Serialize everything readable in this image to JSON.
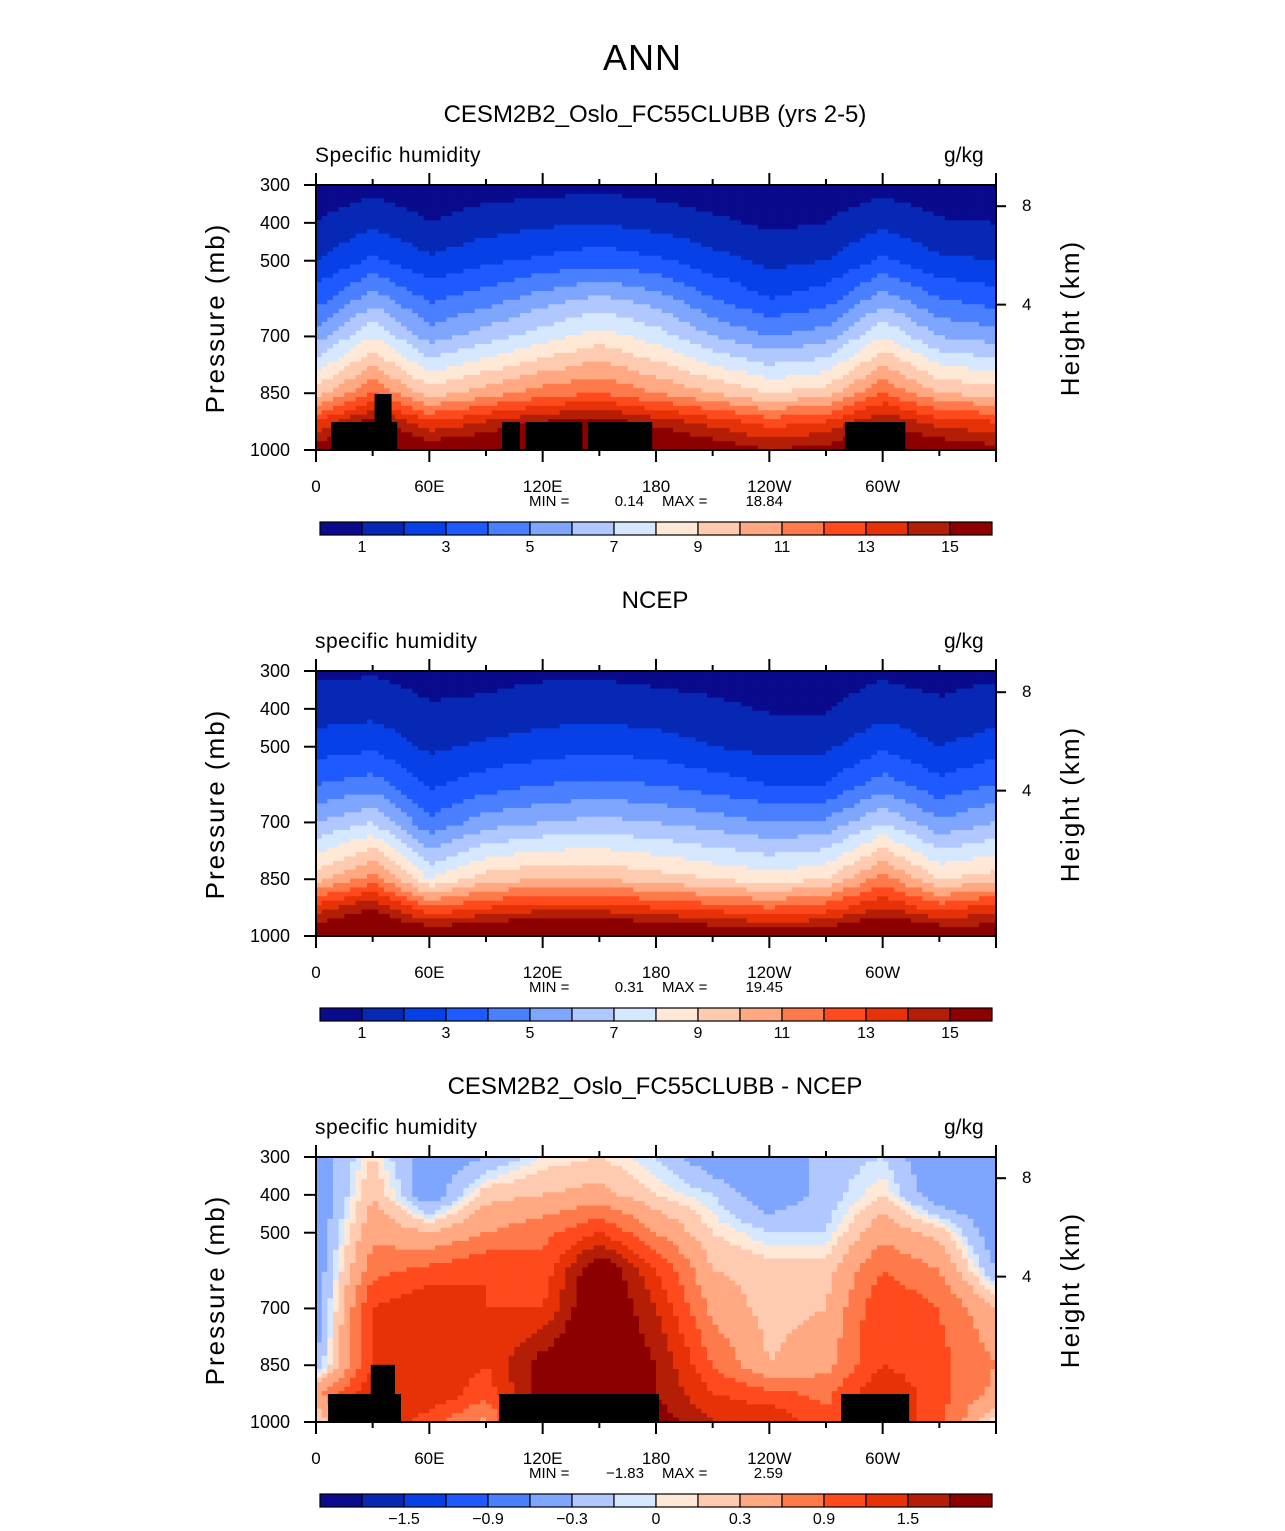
{
  "main_title": "ANN",
  "chart_data": [
    {
      "type": "heatmap",
      "title": "CESM2B2_Oslo_FC55CLUBB (yrs 2-5)",
      "left_string": "Specific humidity",
      "right_string": "g/kg",
      "ylabel": "Pressure (mb)",
      "ylabel_right": "Height (km)",
      "yticks": [
        300,
        400,
        500,
        700,
        850,
        1000
      ],
      "yticks_right": [
        {
          "label": "8",
          "pressure": 356
        },
        {
          "label": "4",
          "pressure": 616
        }
      ],
      "xticks": [
        {
          "lon": 0,
          "label": "0"
        },
        {
          "lon": 60,
          "label": "60E"
        },
        {
          "lon": 120,
          "label": "120E"
        },
        {
          "lon": 180,
          "label": "180"
        },
        {
          "lon": 240,
          "label": "120W"
        },
        {
          "lon": 300,
          "label": "60W"
        }
      ],
      "xlim": [
        0,
        360
      ],
      "ylim": [
        1000,
        300
      ],
      "min_label": "MIN =",
      "min": "0.14",
      "max_label": "MAX =",
      "max": "18.84",
      "levels": [
        1,
        2,
        3,
        4,
        5,
        6,
        7,
        8,
        9,
        10,
        11,
        12,
        13,
        14,
        15
      ],
      "colorbar_labels": [
        "1",
        "3",
        "5",
        "7",
        "9",
        "11",
        "13",
        "15"
      ],
      "lon": [
        0,
        30,
        60,
        90,
        120,
        150,
        180,
        210,
        240,
        270,
        300,
        330,
        360
      ],
      "pressure": [
        1000,
        925,
        850,
        700,
        600,
        500,
        400,
        300
      ],
      "values": [
        [
          15.5,
          17,
          16,
          16.5,
          17.5,
          17.5,
          17,
          16,
          15,
          15.5,
          17,
          16,
          15.5
        ],
        [
          13,
          15.5,
          13,
          14,
          15,
          15.5,
          14.5,
          13.5,
          12.5,
          13,
          15,
          13.5,
          13
        ],
        [
          9.5,
          12,
          9.5,
          10.5,
          11.5,
          12,
          11,
          10,
          9,
          9.5,
          12,
          10,
          9.5
        ],
        [
          5.5,
          8,
          5.5,
          6.5,
          7.5,
          8.5,
          7.5,
          6,
          5,
          5.5,
          8,
          6,
          5.5
        ],
        [
          3.5,
          5.5,
          3.8,
          4.5,
          5.5,
          6.2,
          5.5,
          4,
          3,
          3.5,
          5.5,
          4,
          3.5
        ],
        [
          2,
          3.2,
          2.2,
          2.8,
          3.2,
          3.6,
          3.2,
          2.4,
          1.7,
          2,
          3.2,
          2.2,
          2
        ],
        [
          1,
          1.8,
          1,
          1.5,
          1.8,
          2,
          1.6,
          1.2,
          0.8,
          1,
          1.8,
          1.1,
          1
        ],
        [
          0.3,
          0.6,
          0.4,
          0.5,
          0.6,
          0.7,
          0.6,
          0.4,
          0.3,
          0.3,
          0.6,
          0.4,
          0.3
        ]
      ],
      "land_mask": [
        [
          8,
          43,
          926
        ],
        [
          31,
          40,
          852
        ],
        [
          98.5,
          108,
          926
        ],
        [
          111,
          141,
          926
        ],
        [
          144,
          178,
          926
        ],
        [
          280,
          312,
          926
        ]
      ]
    },
    {
      "type": "heatmap",
      "title": "NCEP",
      "left_string": "specific humidity",
      "right_string": "g/kg",
      "ylabel": "Pressure (mb)",
      "ylabel_right": "Height (km)",
      "yticks": [
        300,
        400,
        500,
        700,
        850,
        1000
      ],
      "yticks_right": [
        {
          "label": "8",
          "pressure": 356
        },
        {
          "label": "4",
          "pressure": 616
        }
      ],
      "xticks": [
        {
          "lon": 0,
          "label": "0"
        },
        {
          "lon": 60,
          "label": "60E"
        },
        {
          "lon": 120,
          "label": "120E"
        },
        {
          "lon": 180,
          "label": "180"
        },
        {
          "lon": 240,
          "label": "120W"
        },
        {
          "lon": 300,
          "label": "60W"
        }
      ],
      "xlim": [
        0,
        360
      ],
      "ylim": [
        1000,
        300
      ],
      "min_label": "MIN =",
      "min": "0.31",
      "max_label": "MAX =",
      "max": "19.45",
      "levels": [
        1,
        2,
        3,
        4,
        5,
        6,
        7,
        8,
        9,
        10,
        11,
        12,
        13,
        14,
        15
      ],
      "colorbar_labels": [
        "1",
        "3",
        "5",
        "7",
        "9",
        "11",
        "13",
        "15"
      ],
      "lon": [
        0,
        30,
        60,
        90,
        120,
        150,
        180,
        210,
        240,
        270,
        300,
        330,
        360
      ],
      "pressure": [
        1000,
        925,
        850,
        700,
        600,
        500,
        400,
        300
      ],
      "values": [
        [
          16,
          17.5,
          16.5,
          17,
          17.5,
          17.5,
          17,
          16.5,
          16,
          16,
          17.5,
          16.5,
          16
        ],
        [
          13.5,
          15,
          12,
          13,
          13.5,
          13.5,
          13,
          12.5,
          12,
          12.5,
          14,
          12.5,
          13.5
        ],
        [
          9.5,
          11.5,
          8,
          9.5,
          10,
          10,
          9.5,
          9,
          8.5,
          9,
          11.5,
          9,
          9.5
        ],
        [
          6,
          7,
          4.2,
          5.5,
          6,
          6.3,
          6,
          5.5,
          5,
          5.2,
          7,
          5.2,
          6
        ],
        [
          4,
          4.5,
          2.8,
          3.5,
          4,
          4.2,
          4,
          3.5,
          3,
          3,
          4.5,
          3.3,
          4
        ],
        [
          2.5,
          2.8,
          1.8,
          2.2,
          2.5,
          2.7,
          2.5,
          2,
          1.7,
          1.8,
          2.8,
          2,
          2.5
        ],
        [
          1.5,
          1.6,
          1.1,
          1.2,
          1.5,
          1.6,
          1.4,
          1.2,
          0.9,
          0.9,
          1.6,
          1.2,
          1.5
        ],
        [
          0.8,
          0.9,
          0.6,
          0.7,
          0.8,
          0.8,
          0.7,
          0.6,
          0.5,
          0.5,
          0.8,
          0.6,
          0.8
        ]
      ],
      "land_mask": []
    },
    {
      "type": "heatmap",
      "title": "CESM2B2_Oslo_FC55CLUBB - NCEP",
      "left_string": "specific humidity",
      "right_string": "g/kg",
      "ylabel": "Pressure (mb)",
      "ylabel_right": "Height (km)",
      "yticks": [
        300,
        400,
        500,
        700,
        850,
        1000
      ],
      "yticks_right": [
        {
          "label": "8",
          "pressure": 356
        },
        {
          "label": "4",
          "pressure": 616
        }
      ],
      "xticks": [
        {
          "lon": 0,
          "label": "0"
        },
        {
          "lon": 60,
          "label": "60E"
        },
        {
          "lon": 120,
          "label": "120E"
        },
        {
          "lon": 180,
          "label": "180"
        },
        {
          "lon": 240,
          "label": "120W"
        },
        {
          "lon": 300,
          "label": "60W"
        }
      ],
      "xlim": [
        0,
        360
      ],
      "ylim": [
        1000,
        300
      ],
      "min_label": "MIN =",
      "min": "−1.83",
      "max_label": "MAX =",
      "max": "2.59",
      "levels": [
        -1.8,
        -1.5,
        -1.2,
        -0.9,
        -0.6,
        -0.3,
        -0.1,
        0,
        0.1,
        0.3,
        0.6,
        0.9,
        1.2,
        1.5,
        1.8
      ],
      "colorbar_labels": [
        "−1.5",
        "−0.9",
        "−0.3",
        "0",
        "0.3",
        "0.9",
        "1.5"
      ],
      "colorbar_label_positions": [
        2,
        4,
        6,
        8,
        10,
        12,
        14
      ],
      "lon": [
        0,
        30,
        60,
        90,
        120,
        150,
        180,
        210,
        240,
        270,
        300,
        330,
        360
      ],
      "pressure": [
        1000,
        925,
        850,
        700,
        600,
        500,
        400,
        300
      ],
      "values": [
        [
          0,
          1.5,
          1,
          0.5,
          2,
          2,
          2,
          1.5,
          1.5,
          1,
          1.5,
          1,
          0
        ],
        [
          0.5,
          1.5,
          1.5,
          1,
          2,
          2.2,
          1.8,
          1.2,
          1,
          0.8,
          1.5,
          1,
          0.5
        ],
        [
          -0.3,
          1.2,
          1.5,
          1.2,
          2,
          2.3,
          1.8,
          0.9,
          0.3,
          0.5,
          1.2,
          1,
          0.6
        ],
        [
          -0.5,
          1.2,
          1.5,
          1.2,
          1.2,
          2.3,
          1.5,
          0.5,
          0.2,
          0.3,
          1.2,
          0.9,
          0.3
        ],
        [
          -0.5,
          0.8,
          1,
          1.2,
          1,
          2.2,
          1.2,
          0.3,
          0.2,
          0.2,
          0.9,
          0.6,
          -0.3
        ],
        [
          -0.5,
          0.5,
          0.3,
          0.6,
          0.8,
          1.2,
          0.6,
          0.1,
          -0.1,
          -0.1,
          0.5,
          0.2,
          -0.5
        ],
        [
          -0.6,
          0.3,
          -0.5,
          0.2,
          0.3,
          0.4,
          0.1,
          -0.1,
          -0.5,
          -0.2,
          0.1,
          -0.5,
          -0.6
        ],
        [
          -0.5,
          0.1,
          -0.5,
          -0.3,
          0,
          0.1,
          -0.1,
          -0.5,
          -0.6,
          -0.2,
          -0.1,
          -0.6,
          -0.5
        ]
      ],
      "land_mask": [
        [
          6.4,
          45,
          926
        ],
        [
          29,
          41.8,
          849
        ],
        [
          97,
          181.6,
          926
        ],
        [
          278,
          314,
          926
        ]
      ]
    }
  ],
  "palette": [
    "#0a0a8c",
    "#0628b4",
    "#0640e6",
    "#1e5aff",
    "#4a80ff",
    "#7ea6ff",
    "#b0c8ff",
    "#d6e8ff",
    "#ffe8d6",
    "#ffcbb0",
    "#ffa882",
    "#ff7a4a",
    "#ff4a1e",
    "#e63206",
    "#b41e06",
    "#8c0000"
  ]
}
